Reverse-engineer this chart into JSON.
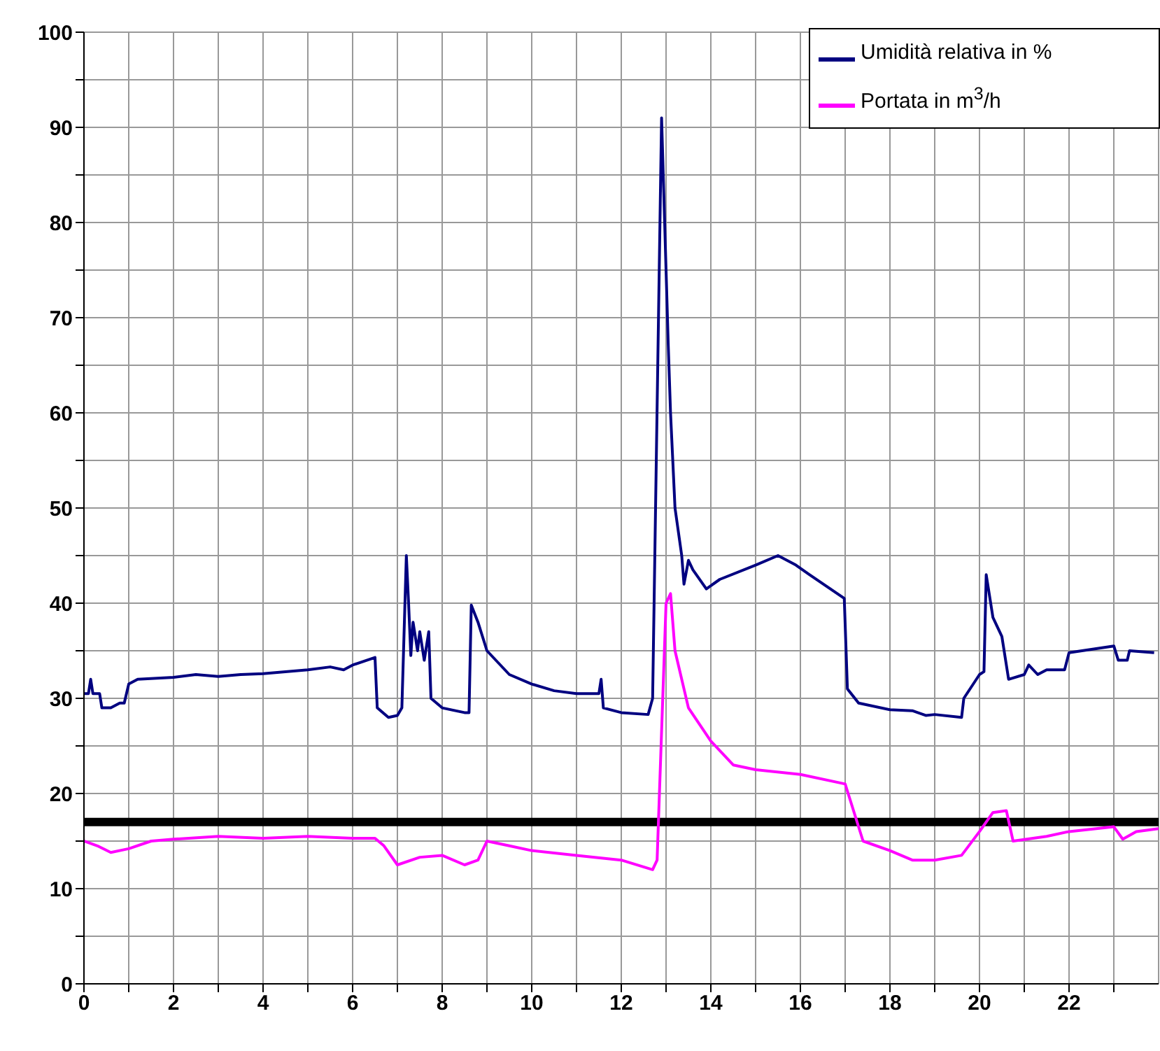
{
  "chart_data": {
    "type": "line",
    "xlim": [
      0,
      24
    ],
    "xticks": [
      0,
      {
        "value": 1,
        "label": null
      },
      2,
      {
        "value": 3,
        "label": null
      },
      4,
      {
        "value": 5,
        "label": null
      },
      6,
      {
        "value": 7,
        "label": null
      },
      8,
      {
        "value": 9,
        "label": null
      },
      10,
      {
        "value": 11,
        "label": null
      },
      12,
      {
        "value": 13,
        "label": null
      },
      14,
      {
        "value": 15,
        "label": null
      },
      16,
      {
        "value": 17,
        "label": null
      },
      18,
      {
        "value": 19,
        "label": null
      },
      20,
      {
        "value": 21,
        "label": null
      },
      22,
      {
        "value": 23,
        "label": null
      }
    ],
    "ylim": [
      0,
      100
    ],
    "yticks": [
      0,
      {
        "value": 5,
        "label": null
      },
      10,
      {
        "value": 15,
        "label": null
      },
      20,
      {
        "value": 25,
        "label": null
      },
      30,
      {
        "value": 35,
        "label": null
      },
      40,
      {
        "value": 45,
        "label": null
      },
      50,
      {
        "value": 55,
        "label": null
      },
      60,
      {
        "value": 65,
        "label": null
      },
      70,
      {
        "value": 75,
        "label": null
      },
      80,
      {
        "value": 85,
        "label": null
      },
      90,
      {
        "value": 95,
        "label": null
      },
      100
    ],
    "grid": true,
    "legend": "top right",
    "marker": "none",
    "line_style": "solid",
    "ref_lines": [
      {
        "axis": "y",
        "value": 17,
        "color": "#000000",
        "line_style": "solid"
      }
    ],
    "series": [
      {
        "name": "Umidità relativa in %",
        "color": "#000080",
        "x": [
          0,
          0.1,
          0.15,
          0.2,
          0.35,
          0.4,
          0.6,
          0.8,
          0.9,
          1.0,
          1.2,
          2,
          2.5,
          3,
          3.5,
          4,
          5,
          5.5,
          5.8,
          6,
          6.5,
          6.55,
          6.8,
          7.0,
          7.1,
          7.2,
          7.25,
          7.3,
          7.35,
          7.45,
          7.5,
          7.6,
          7.7,
          7.75,
          8.0,
          8.5,
          8.6,
          8.65,
          8.8,
          9.0,
          9.5,
          10,
          10.5,
          11,
          11.5,
          11.55,
          11.6,
          12,
          12.6,
          12.7,
          12.9,
          13.0,
          13.05,
          13.1,
          13.2,
          13.35,
          13.4,
          13.5,
          13.6,
          13.9,
          14.2,
          15,
          15.5,
          15.9,
          16.2,
          16.98,
          17.05,
          17.3,
          18,
          18.5,
          18.8,
          19.0,
          19.6,
          19.65,
          20.0,
          20.1,
          20.15,
          20.3,
          20.5,
          20.65,
          21.0,
          21.1,
          21.3,
          21.5,
          21.9,
          22.0,
          23,
          23.1,
          23.3,
          23.35,
          23.9
        ],
        "values": [
          30.5,
          30.5,
          32,
          30.5,
          30.5,
          29,
          29,
          29.5,
          29.5,
          31.5,
          32,
          32.2,
          32.5,
          32.3,
          32.5,
          32.6,
          33,
          33.3,
          33,
          33.5,
          34.3,
          29,
          28,
          28.2,
          29,
          45,
          40,
          34.5,
          38,
          35,
          37,
          34,
          37,
          30,
          29,
          28.5,
          28.5,
          39.8,
          38,
          35,
          32.5,
          31.5,
          30.8,
          30.5,
          30.5,
          32,
          29,
          28.5,
          28.3,
          30,
          91,
          75,
          67,
          60,
          50,
          45,
          42,
          44.5,
          43.5,
          41.5,
          42.5,
          44,
          45,
          44,
          43,
          40.5,
          31,
          29.5,
          28.8,
          28.7,
          28.2,
          28.3,
          28,
          30,
          32.5,
          32.8,
          43,
          38.5,
          36.5,
          32,
          32.5,
          33.5,
          32.5,
          33,
          33,
          34.8,
          35.5,
          34,
          34,
          35,
          34.8
        ]
      },
      {
        "name": "Portata in  m$^{3}$/h",
        "color": "#ff00ff",
        "x": [
          0,
          0.3,
          0.6,
          1.0,
          1.5,
          2,
          3,
          4,
          5,
          6,
          6.5,
          6.7,
          7.0,
          7.5,
          8,
          8.5,
          8.8,
          9.0,
          9.5,
          10,
          11,
          12,
          12.7,
          12.8,
          13.0,
          13.1,
          13.2,
          13.5,
          14,
          14.5,
          15,
          16,
          17,
          17.4,
          18,
          18.5,
          19,
          19.6,
          20,
          20.3,
          20.6,
          20.75,
          21.5,
          22,
          23,
          23.2,
          23.5,
          24
        ],
        "values": [
          15,
          14.5,
          13.8,
          14.2,
          15,
          15.2,
          15.5,
          15.3,
          15.5,
          15.3,
          15.3,
          14.5,
          12.5,
          13.3,
          13.5,
          12.5,
          13,
          15,
          14.5,
          14,
          13.5,
          13,
          12,
          13,
          40,
          41,
          35,
          29,
          25.5,
          23,
          22.5,
          22,
          21,
          15,
          14,
          13,
          13,
          13.5,
          16,
          18,
          18.2,
          15,
          15.5,
          16,
          16.5,
          15.2,
          16,
          16.3
        ]
      }
    ]
  }
}
